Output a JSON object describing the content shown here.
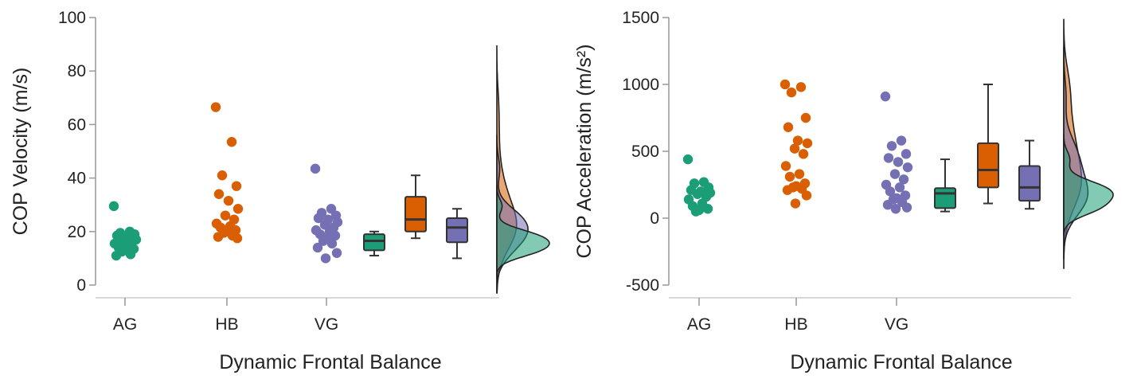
{
  "colors": {
    "AG": "#1b9e77",
    "HB": "#d95f02",
    "VG": "#7570b3"
  },
  "chart_data": [
    {
      "type": "raincloud",
      "xlabel": "Dynamic Frontal Balance",
      "ylabel": "COP Velocity (m/s)",
      "ylim": [
        0,
        100
      ],
      "yticks": [
        0,
        20,
        40,
        60,
        80,
        100
      ],
      "categories": [
        "AG",
        "HB",
        "VG"
      ],
      "series": [
        {
          "name": "AG",
          "points": [
            29.5,
            20.0,
            19.5,
            19.0,
            18.5,
            17.5,
            17.0,
            16.5,
            16.0,
            15.5,
            14.5,
            14.0,
            13.5,
            13.0,
            12.5,
            11.5,
            11.0
          ],
          "box": {
            "min": 11.0,
            "q1": 13.0,
            "median": 16.5,
            "q3": 19.0,
            "max": 20.0
          }
        },
        {
          "name": "HB",
          "points": [
            66.5,
            53.5,
            41.0,
            37.0,
            34.0,
            31.5,
            28.5,
            26.0,
            24.5,
            23.0,
            22.0,
            21.5,
            20.5,
            20.0,
            19.5,
            18.5,
            18.0,
            17.5
          ],
          "box": {
            "min": 17.5,
            "q1": 20.0,
            "median": 24.5,
            "q3": 33.0,
            "max": 41.0
          }
        },
        {
          "name": "VG",
          "points": [
            43.5,
            28.5,
            27.0,
            26.0,
            25.0,
            24.5,
            23.5,
            22.5,
            21.5,
            20.5,
            20.0,
            19.0,
            18.5,
            17.5,
            16.5,
            15.5,
            14.0,
            12.0,
            10.0
          ],
          "box": {
            "min": 10.0,
            "q1": 16.0,
            "median": 21.5,
            "q3": 25.0,
            "max": 28.5
          }
        }
      ]
    },
    {
      "type": "raincloud",
      "xlabel": "Dynamic Frontal Balance",
      "ylabel": "COP Acceleration (m/s²)",
      "ylim": [
        -500,
        1500
      ],
      "yticks": [
        -500,
        0,
        500,
        1000,
        1500
      ],
      "categories": [
        "AG",
        "HB",
        "VG"
      ],
      "series": [
        {
          "name": "AG",
          "points": [
            440,
            270,
            260,
            230,
            210,
            200,
            190,
            180,
            160,
            140,
            110,
            90,
            70,
            60,
            50
          ],
          "box": {
            "min": 50,
            "q1": 75,
            "median": 185,
            "q3": 225,
            "max": 440
          }
        },
        {
          "name": "HB",
          "points": [
            1000,
            980,
            940,
            750,
            680,
            580,
            560,
            520,
            480,
            390,
            330,
            310,
            260,
            240,
            230,
            220,
            210,
            170,
            110
          ],
          "box": {
            "min": 110,
            "q1": 230,
            "median": 360,
            "q3": 560,
            "max": 1000
          }
        },
        {
          "name": "VG",
          "points": [
            910,
            580,
            540,
            480,
            450,
            420,
            380,
            330,
            290,
            250,
            230,
            200,
            170,
            150,
            140,
            120,
            100,
            80,
            70
          ],
          "box": {
            "min": 70,
            "q1": 130,
            "median": 230,
            "q3": 390,
            "max": 580
          }
        }
      ]
    }
  ]
}
